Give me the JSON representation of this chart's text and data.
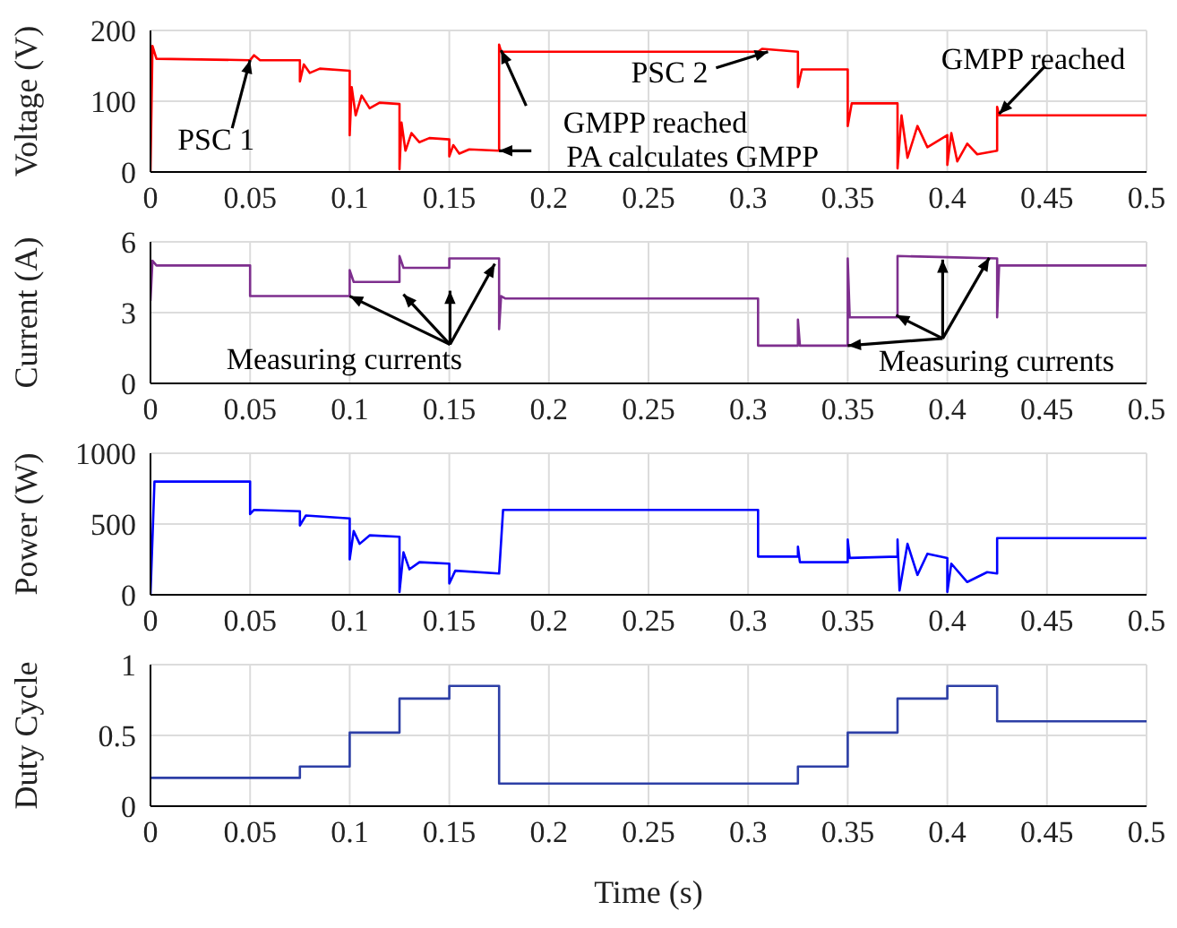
{
  "chart_data": [
    {
      "type": "line",
      "ylabel": "Voltage (V)",
      "xlim": [
        0,
        0.5
      ],
      "xticks": [
        0,
        0.05,
        0.1,
        0.15,
        0.2,
        0.25,
        0.3,
        0.35,
        0.4,
        0.45,
        0.5
      ],
      "ylim": [
        0,
        200
      ],
      "yticks": [
        0,
        100,
        200
      ],
      "grid": true,
      "series": [
        {
          "color": "#ff0000",
          "x": [
            0,
            0.001,
            0.003,
            0.05,
            0.052,
            0.055,
            0.075,
            0.075,
            0.077,
            0.08,
            0.085,
            0.1,
            0.1,
            0.101,
            0.103,
            0.106,
            0.11,
            0.115,
            0.125,
            0.125,
            0.126,
            0.128,
            0.131,
            0.135,
            0.14,
            0.15,
            0.15,
            0.152,
            0.155,
            0.16,
            0.175,
            0.175,
            0.176,
            0.178,
            0.305,
            0.307,
            0.325,
            0.325,
            0.327,
            0.35,
            0.35,
            0.352,
            0.375,
            0.375,
            0.377,
            0.38,
            0.385,
            0.39,
            0.4,
            0.4,
            0.402,
            0.405,
            0.41,
            0.415,
            0.425,
            0.425,
            0.426,
            0.428,
            0.5
          ],
          "values": [
            0,
            178,
            160,
            158,
            165,
            158,
            158,
            128,
            152,
            140,
            146,
            143,
            52,
            120,
            80,
            108,
            90,
            98,
            96,
            4,
            70,
            30,
            55,
            42,
            48,
            46,
            22,
            38,
            26,
            32,
            30,
            180,
            170,
            170,
            170,
            174,
            170,
            120,
            145,
            145,
            65,
            97,
            97,
            5,
            80,
            20,
            65,
            35,
            52,
            10,
            55,
            15,
            40,
            25,
            30,
            92,
            80,
            80,
            80
          ]
        }
      ],
      "annotations": [
        {
          "text": "PSC 1",
          "x": 0.05,
          "y": 158
        },
        {
          "text": "GMPP reached",
          "x": 0.176,
          "y": 172
        },
        {
          "text": "PA calculates GMPP",
          "x": 0.175,
          "y": 30
        },
        {
          "text": "PSC 2",
          "x": 0.31,
          "y": 170
        },
        {
          "text": "GMPP reached",
          "x": 0.426,
          "y": 82
        }
      ]
    },
    {
      "type": "line",
      "ylabel": "Current (A)",
      "xlim": [
        0,
        0.5
      ],
      "xticks": [
        0,
        0.05,
        0.1,
        0.15,
        0.2,
        0.25,
        0.3,
        0.35,
        0.4,
        0.45,
        0.5
      ],
      "ylim": [
        0,
        6
      ],
      "yticks": [
        0,
        3,
        6
      ],
      "grid": true,
      "series": [
        {
          "color": "#7e2f8e",
          "x": [
            0,
            0.001,
            0.003,
            0.05,
            0.05,
            0.1,
            0.1,
            0.102,
            0.125,
            0.125,
            0.127,
            0.15,
            0.15,
            0.175,
            0.175,
            0.176,
            0.178,
            0.305,
            0.305,
            0.325,
            0.325,
            0.326,
            0.35,
            0.35,
            0.351,
            0.375,
            0.375,
            0.4,
            0.425,
            0.425,
            0.426,
            0.5
          ],
          "values": [
            3.5,
            5.2,
            5.0,
            5.0,
            3.7,
            3.7,
            4.8,
            4.3,
            4.3,
            5.4,
            4.9,
            4.9,
            5.3,
            5.3,
            2.3,
            3.7,
            3.6,
            3.6,
            1.6,
            1.6,
            2.7,
            1.6,
            1.6,
            5.3,
            2.8,
            2.8,
            5.4,
            5.35,
            5.3,
            2.8,
            5.0,
            5.0
          ]
        }
      ],
      "annotations": [
        {
          "text": "Measuring currents",
          "x": 0.1,
          "y": 3.7
        },
        {
          "text": "Measuring currents",
          "x": 0.35,
          "y": 1.6
        }
      ]
    },
    {
      "type": "line",
      "ylabel": "Power (W)",
      "xlim": [
        0,
        0.5
      ],
      "xticks": [
        0,
        0.05,
        0.1,
        0.15,
        0.2,
        0.25,
        0.3,
        0.35,
        0.4,
        0.45,
        0.5
      ],
      "ylim": [
        0,
        1000
      ],
      "yticks": [
        0,
        500,
        1000
      ],
      "grid": true,
      "series": [
        {
          "color": "#0000ff",
          "x": [
            0,
            0.002,
            0.05,
            0.05,
            0.052,
            0.075,
            0.075,
            0.078,
            0.1,
            0.1,
            0.102,
            0.105,
            0.11,
            0.125,
            0.125,
            0.127,
            0.13,
            0.135,
            0.15,
            0.15,
            0.153,
            0.175,
            0.177,
            0.305,
            0.305,
            0.325,
            0.325,
            0.326,
            0.35,
            0.35,
            0.351,
            0.375,
            0.375,
            0.376,
            0.38,
            0.385,
            0.39,
            0.4,
            0.4,
            0.402,
            0.41,
            0.42,
            0.425,
            0.425,
            0.5
          ],
          "values": [
            0,
            800,
            800,
            570,
            600,
            590,
            490,
            560,
            540,
            250,
            450,
            360,
            420,
            410,
            20,
            300,
            180,
            230,
            220,
            80,
            170,
            150,
            600,
            600,
            270,
            270,
            340,
            230,
            230,
            390,
            260,
            270,
            390,
            30,
            360,
            140,
            290,
            260,
            20,
            220,
            90,
            160,
            150,
            400,
            400
          ]
        }
      ]
    },
    {
      "type": "step",
      "ylabel": "Duty Cycle",
      "xlabel": "Time (s)",
      "xlim": [
        0,
        0.5
      ],
      "xticks": [
        0,
        0.05,
        0.1,
        0.15,
        0.2,
        0.25,
        0.3,
        0.35,
        0.4,
        0.45,
        0.5
      ],
      "ylim": [
        0,
        1
      ],
      "yticks": [
        0,
        0.5,
        1
      ],
      "grid": true,
      "series": [
        {
          "color": "#2d3fa6",
          "x": [
            0,
            0.075,
            0.1,
            0.125,
            0.15,
            0.175,
            0.325,
            0.35,
            0.375,
            0.4,
            0.425,
            0.5
          ],
          "values": [
            0.2,
            0.28,
            0.52,
            0.76,
            0.85,
            0.16,
            0.28,
            0.52,
            0.76,
            0.85,
            0.6,
            0.6
          ]
        }
      ]
    }
  ]
}
